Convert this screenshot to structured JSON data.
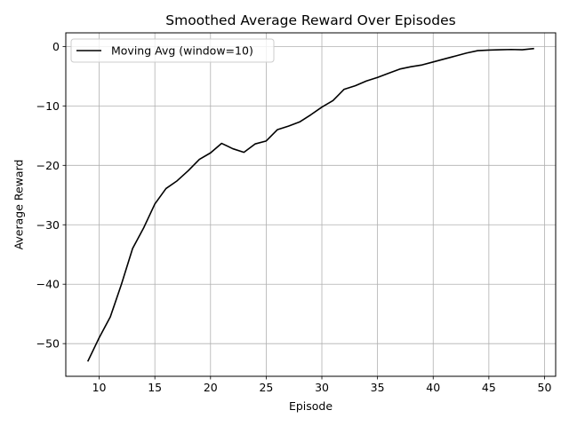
{
  "chart_data": {
    "type": "line",
    "title": "Smoothed Average Reward Over Episodes",
    "xlabel": "Episode",
    "ylabel": "Average Reward",
    "xlim": [
      7,
      51
    ],
    "ylim": [
      -55.5,
      2.3
    ],
    "xticks": [
      10,
      15,
      20,
      25,
      30,
      35,
      40,
      45,
      50
    ],
    "xtick_labels": [
      "10",
      "15",
      "20",
      "25",
      "30",
      "35",
      "40",
      "45",
      "50"
    ],
    "yticks": [
      0,
      -10,
      -20,
      -30,
      -40,
      -50
    ],
    "ytick_labels": [
      "0",
      "−10",
      "−20",
      "−30",
      "−40",
      "−50"
    ],
    "grid": true,
    "legend_position": "top-left",
    "series": [
      {
        "name": "Moving Avg (window=10)",
        "color": "#000000",
        "x": [
          9,
          10,
          11,
          12,
          13,
          14,
          15,
          16,
          17,
          18,
          19,
          20,
          21,
          22,
          23,
          24,
          25,
          26,
          27,
          28,
          29,
          30,
          31,
          32,
          33,
          34,
          35,
          36,
          37,
          38,
          39,
          40,
          41,
          42,
          43,
          44,
          45,
          46,
          47,
          48,
          49
        ],
        "values": [
          -52.9,
          -49.0,
          -45.5,
          -40.0,
          -34.0,
          -30.5,
          -26.5,
          -23.9,
          -22.6,
          -20.9,
          -19.0,
          -17.9,
          -16.3,
          -17.2,
          -17.8,
          -16.4,
          -15.9,
          -14.0,
          -13.4,
          -12.7,
          -11.5,
          -10.2,
          -9.1,
          -7.2,
          -6.6,
          -5.8,
          -5.2,
          -4.5,
          -3.8,
          -3.4,
          -3.1,
          -2.6,
          -2.1,
          -1.6,
          -1.1,
          -0.7,
          -0.6,
          -0.55,
          -0.5,
          -0.55,
          -0.35
        ]
      }
    ]
  }
}
